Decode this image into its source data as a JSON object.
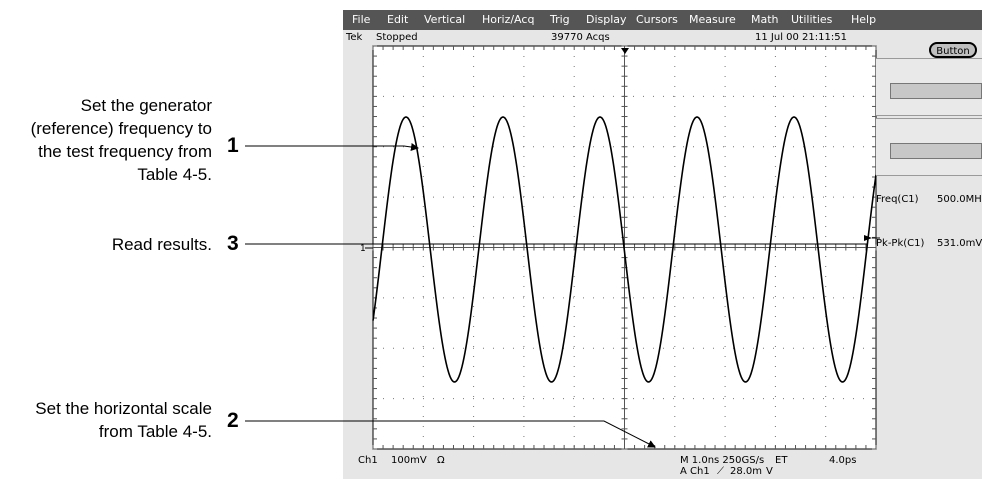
{
  "callouts": {
    "step1": {
      "number": "1",
      "lines": [
        "Set the generator",
        "(reference) frequency to",
        "the test frequency from",
        "Table 4-5."
      ]
    },
    "step3": {
      "number": "3",
      "lines": [
        "Read results."
      ]
    },
    "step2": {
      "number": "2",
      "lines": [
        "Set the horizontal scale",
        "from Table 4-5."
      ]
    }
  },
  "scope": {
    "menu": [
      "File",
      "Edit",
      "Vertical",
      "Horiz/Acq",
      "Trig",
      "Display",
      "Cursors",
      "Measure",
      "Math",
      "Utilities",
      "Help"
    ],
    "status": {
      "brand": "Tek",
      "state": "Stopped",
      "acqs": "39770 Acqs",
      "datetime": "11 Jul 00 21:11:51"
    },
    "button_label": "Button",
    "measurements": [
      {
        "label": "Freq(C1)",
        "value": "500.0MH"
      },
      {
        "label": "Pk-Pk(C1)",
        "value": "531.0mV"
      }
    ],
    "channel_marker": "1",
    "readout": {
      "channel": "Ch1",
      "volts_div": "100mV",
      "coupling": "Ω",
      "timebase": "M 1.0ns 250GS/s",
      "mode": "ET",
      "position": "4.0ps",
      "trigger": "A Ch1",
      "trigger_slope": "⟋",
      "trigger_level": "28.0m",
      "trigger_unit": "V"
    },
    "colors": {
      "menubar": "#555555",
      "graticule_bg": "#ffffff",
      "trace": "#000000"
    }
  }
}
